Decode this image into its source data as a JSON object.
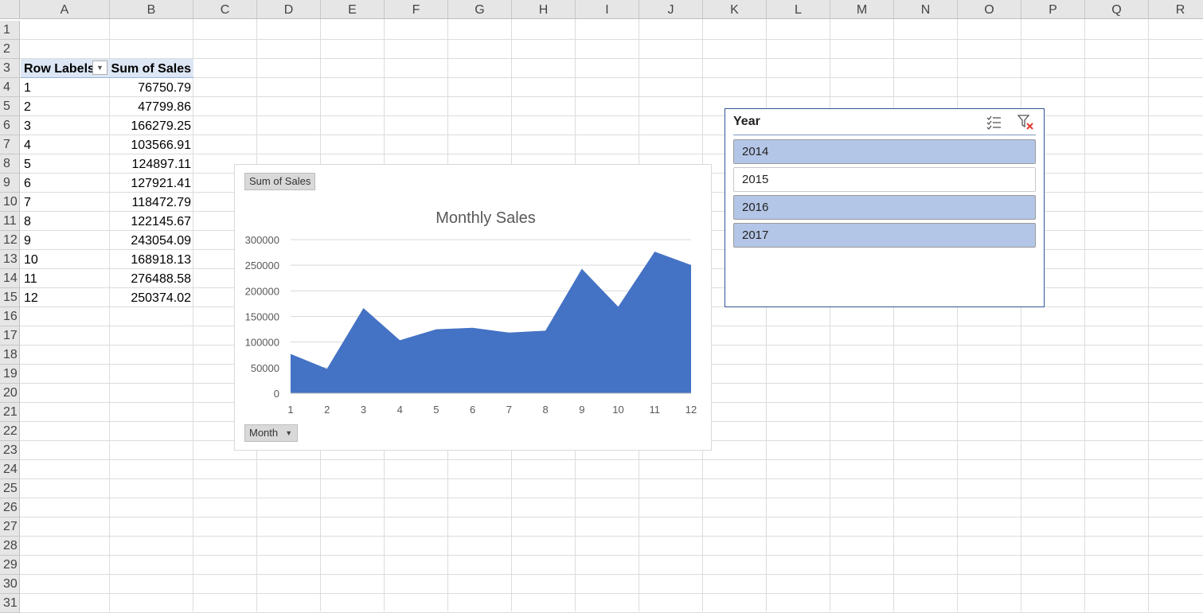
{
  "sheet": {
    "columns": [
      "A",
      "B",
      "C",
      "D",
      "E",
      "F",
      "G",
      "H",
      "I",
      "J",
      "K",
      "L",
      "M",
      "N",
      "O",
      "P",
      "Q",
      "R"
    ],
    "rows": [
      "1",
      "2",
      "3",
      "4",
      "5",
      "6",
      "7",
      "8",
      "9",
      "10",
      "11",
      "12",
      "13",
      "14",
      "15",
      "16",
      "17",
      "18",
      "19",
      "20",
      "21",
      "22",
      "23",
      "24",
      "25",
      "26",
      "27",
      "28",
      "29",
      "30",
      "31"
    ]
  },
  "pivot": {
    "row_labels_header": "Row Labels",
    "sum_header": "Sum of Sales",
    "rows": [
      {
        "label": "1",
        "value": "76750.79"
      },
      {
        "label": "2",
        "value": "47799.86"
      },
      {
        "label": "3",
        "value": "166279.25"
      },
      {
        "label": "4",
        "value": "103566.91"
      },
      {
        "label": "5",
        "value": "124897.11"
      },
      {
        "label": "6",
        "value": "127921.41"
      },
      {
        "label": "7",
        "value": "118472.79"
      },
      {
        "label": "8",
        "value": "122145.67"
      },
      {
        "label": "9",
        "value": "243054.09"
      },
      {
        "label": "10",
        "value": "168918.13"
      },
      {
        "label": "11",
        "value": "276488.58"
      },
      {
        "label": "12",
        "value": "250374.02"
      }
    ],
    "dropdown_icon": "dropdown-arrow-icon"
  },
  "chart_field_buttons": {
    "value_field": "Sum of Sales",
    "axis_field": "Month"
  },
  "chart_data": {
    "type": "area",
    "title": "Monthly Sales",
    "categories": [
      "1",
      "2",
      "3",
      "4",
      "5",
      "6",
      "7",
      "8",
      "9",
      "10",
      "11",
      "12"
    ],
    "series": [
      {
        "values": [
          76750.79,
          47799.86,
          166279.25,
          103566.91,
          124897.11,
          127921.41,
          118472.79,
          122145.67,
          243054.09,
          168918.13,
          276488.58,
          250374.02
        ]
      }
    ],
    "yticks": [
      "0",
      "50000",
      "100000",
      "150000",
      "200000",
      "250000",
      "300000"
    ],
    "ylim": [
      0,
      300000
    ],
    "grid": true,
    "legend": "none",
    "color": "#4472c4"
  },
  "slicer": {
    "title": "Year",
    "items": [
      {
        "label": "2014",
        "selected": true
      },
      {
        "label": "2015",
        "selected": false
      },
      {
        "label": "2016",
        "selected": true
      },
      {
        "label": "2017",
        "selected": true
      }
    ],
    "icons": [
      "multi-select-icon",
      "clear-filter-icon"
    ]
  }
}
